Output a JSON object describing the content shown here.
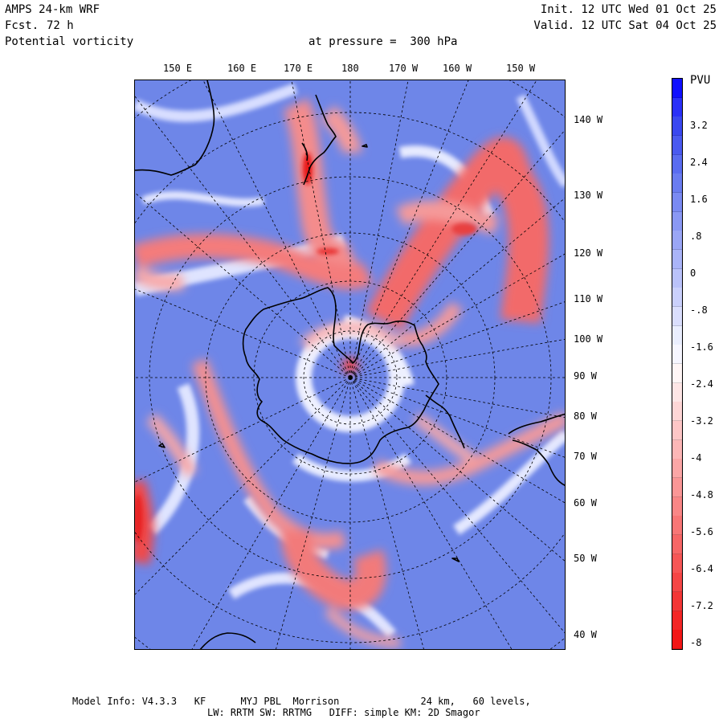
{
  "header": {
    "model": "AMPS 24-km WRF",
    "fcst_label": "Fcst.",
    "fcst_value": "72 h",
    "field": "Potential vorticity",
    "level": "at pressure =  300 hPa",
    "init": "Init. 12 UTC Wed 01 Oct 25",
    "valid": "Valid. 12 UTC Sat 04 Oct 25"
  },
  "map": {
    "top_labels": [
      "150 E",
      "160 E",
      "170 E",
      "180",
      "170 W",
      "160 W",
      "150 W"
    ],
    "right_labels": [
      "140 W",
      "130 W",
      "120 W",
      "110 W",
      "100 W",
      "90 W",
      "80 W",
      "70 W",
      "60 W",
      "50 W",
      "40 W"
    ],
    "colors": {
      "positive": "#3344ee",
      "background": "#6e86e8",
      "neutral": "#f2f2ff",
      "negative": "#ff2a2a",
      "light_negative": "#f49a9a"
    }
  },
  "colorbar": {
    "unit": "PVU",
    "labels": [
      "3.2",
      "2.4",
      "1.6",
      ".8",
      "0",
      "-.8",
      "-1.6",
      "-2.4",
      "-3.2",
      "-4",
      "-4.8",
      "-5.6",
      "-6.4",
      "-7.2",
      "-8"
    ],
    "colors": [
      "#1010ff",
      "#2a30f8",
      "#3a48f0",
      "#4a5af0",
      "#5a6cf0",
      "#6a7cf0",
      "#7a8af2",
      "#8a98f4",
      "#9aa6f6",
      "#aab4f8",
      "#bac2fa",
      "#cad0fc",
      "#dadefd",
      "#eaeefe",
      "#f6f6ff",
      "#fff6f6",
      "#fee6e6",
      "#fed6d6",
      "#fdc6c6",
      "#fcb6b6",
      "#fba6a6",
      "#fa9696",
      "#f98686",
      "#f87676",
      "#f76666",
      "#f65656",
      "#f54646",
      "#f43636",
      "#f32626",
      "#f21616"
    ]
  },
  "footer": {
    "line1": "Model Info: V4.3.3   KF      MYJ PBL  Morrison              24 km,   60 levels,",
    "line2": "LW: RRTM SW: RRTMG   DIFF: simple KM: 2D Smagor"
  }
}
